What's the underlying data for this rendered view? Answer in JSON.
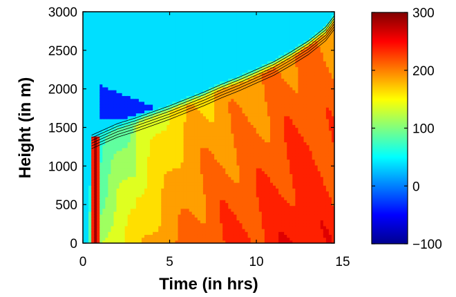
{
  "chart_data": {
    "type": "heatmap",
    "title": "",
    "xlabel": "Time (in hrs)",
    "ylabel": "Height (in m)",
    "xlim": [
      0,
      14.5
    ],
    "ylim": [
      0,
      3000
    ],
    "xticks": [
      0,
      5,
      10,
      15
    ],
    "yticks": [
      0,
      500,
      1000,
      1500,
      2000,
      2500,
      3000
    ],
    "colorbar": {
      "colormap": "jet",
      "clim": [
        -100,
        300
      ],
      "ticks": [
        "300",
        "200",
        "100",
        "0",
        "−100"
      ]
    },
    "approx_field": {
      "boundary_layer_top_m": {
        "time_hrs": [
          0.5,
          1,
          2,
          3,
          4,
          5,
          6,
          7,
          8,
          9,
          10,
          11,
          12,
          13,
          14,
          14.5
        ],
        "height_m": [
          1400,
          1450,
          1550,
          1620,
          1700,
          1780,
          1870,
          1960,
          2060,
          2150,
          2250,
          2350,
          2480,
          2620,
          2800,
          2950
        ]
      },
      "upper_air_value": 30,
      "minimum_pocket": {
        "time_hrs": [
          1,
          5
        ],
        "height_m": [
          1600,
          2050
        ],
        "value": -30
      },
      "surface_values_by_time": {
        "time_hrs": [
          0.5,
          1,
          2,
          3,
          4,
          5,
          6,
          8,
          10,
          12,
          13,
          14.5
        ],
        "value": [
          90,
          120,
          150,
          165,
          180,
          195,
          210,
          225,
          232,
          245,
          248,
          238
        ]
      },
      "early_spike": {
        "time_hrs": 0.7,
        "height_m": [
          0,
          1400
        ],
        "value": 290
      }
    }
  }
}
